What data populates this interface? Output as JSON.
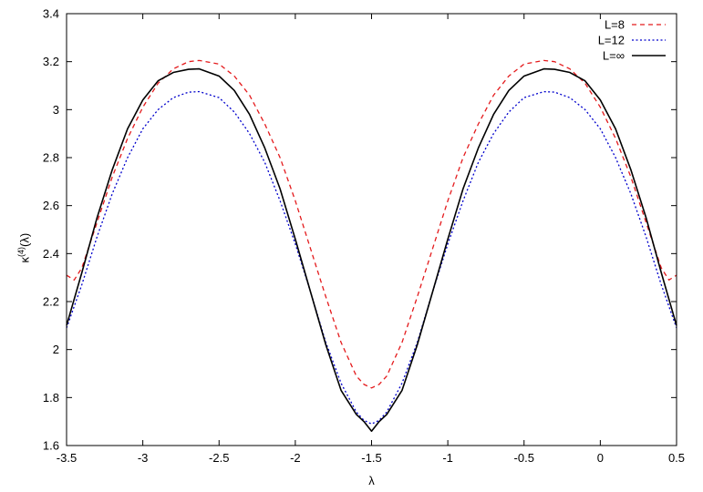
{
  "chart_data": {
    "type": "line",
    "title": "",
    "xlabel": "λ",
    "ylabel": {
      "base": "κ",
      "sup": "(4)",
      "arg": "(λ)"
    },
    "xlim": [
      -3.5,
      0.5
    ],
    "ylim": [
      1.6,
      3.4
    ],
    "xticks": [
      -3.5,
      -3,
      -2.5,
      -2,
      -1.5,
      -1,
      -0.5,
      0,
      0.5
    ],
    "xtick_labels": [
      "-3.5",
      "-3",
      "-2.5",
      "-2",
      "-1.5",
      "-1",
      "-0.5",
      "0",
      "0.5"
    ],
    "yticks": [
      1.6,
      1.8,
      2.0,
      2.2,
      2.4,
      2.6,
      2.8,
      3.0,
      3.2,
      3.4
    ],
    "ytick_labels": [
      "1.6",
      "1.8",
      "2",
      "2.2",
      "2.4",
      "2.6",
      "2.8",
      "3",
      "3.2",
      "3.4"
    ],
    "grid": false,
    "legend_position": "top-right",
    "series": [
      {
        "name": "L=8",
        "color": "#e41a1c",
        "dash": "dashed",
        "x": [
          -3.5,
          -3.45,
          -3.4,
          -3.3,
          -3.2,
          -3.1,
          -3.0,
          -2.9,
          -2.8,
          -2.7,
          -2.63,
          -2.5,
          -2.4,
          -2.3,
          -2.2,
          -2.1,
          -2.0,
          -1.9,
          -1.8,
          -1.7,
          -1.6,
          -1.55,
          -1.5,
          -1.45,
          -1.4,
          -1.3,
          -1.2,
          -1.1,
          -1.0,
          -0.9,
          -0.8,
          -0.7,
          -0.6,
          -0.5,
          -0.37,
          -0.3,
          -0.2,
          -0.1,
          0.0,
          0.1,
          0.2,
          0.3,
          0.4,
          0.45,
          0.5
        ],
        "y": [
          2.31,
          2.29,
          2.34,
          2.53,
          2.72,
          2.88,
          3.01,
          3.11,
          3.17,
          3.2,
          3.205,
          3.19,
          3.14,
          3.06,
          2.94,
          2.8,
          2.62,
          2.42,
          2.22,
          2.03,
          1.89,
          1.855,
          1.84,
          1.855,
          1.89,
          2.03,
          2.22,
          2.42,
          2.62,
          2.8,
          2.94,
          3.06,
          3.14,
          3.19,
          3.205,
          3.2,
          3.17,
          3.11,
          3.01,
          2.88,
          2.72,
          2.53,
          2.34,
          2.29,
          2.31
        ]
      },
      {
        "name": "L=12",
        "color": "#0000cc",
        "dash": "dotted",
        "x": [
          -3.5,
          -3.4,
          -3.3,
          -3.2,
          -3.1,
          -3.0,
          -2.9,
          -2.8,
          -2.7,
          -2.63,
          -2.5,
          -2.4,
          -2.3,
          -2.2,
          -2.1,
          -2.0,
          -1.9,
          -1.8,
          -1.7,
          -1.6,
          -1.55,
          -1.5,
          -1.45,
          -1.4,
          -1.3,
          -1.2,
          -1.1,
          -1.0,
          -0.9,
          -0.8,
          -0.7,
          -0.6,
          -0.5,
          -0.37,
          -0.3,
          -0.2,
          -0.1,
          0.0,
          0.1,
          0.2,
          0.3,
          0.4,
          0.5
        ],
        "y": [
          2.09,
          2.27,
          2.47,
          2.65,
          2.8,
          2.92,
          3.0,
          3.05,
          3.073,
          3.075,
          3.05,
          2.99,
          2.9,
          2.78,
          2.62,
          2.44,
          2.24,
          2.03,
          1.86,
          1.74,
          1.705,
          1.69,
          1.705,
          1.74,
          1.86,
          2.03,
          2.24,
          2.44,
          2.62,
          2.78,
          2.9,
          2.99,
          3.05,
          3.075,
          3.073,
          3.05,
          3.0,
          2.92,
          2.8,
          2.65,
          2.47,
          2.27,
          2.09
        ]
      },
      {
        "name": "L=∞",
        "color": "#000000",
        "dash": "solid",
        "x": [
          -3.5,
          -3.4,
          -3.3,
          -3.2,
          -3.1,
          -3.0,
          -2.9,
          -2.8,
          -2.7,
          -2.63,
          -2.5,
          -2.4,
          -2.3,
          -2.2,
          -2.1,
          -2.0,
          -1.9,
          -1.8,
          -1.7,
          -1.6,
          -1.55,
          -1.5,
          -1.45,
          -1.4,
          -1.3,
          -1.2,
          -1.1,
          -1.0,
          -0.9,
          -0.8,
          -0.7,
          -0.6,
          -0.5,
          -0.37,
          -0.3,
          -0.2,
          -0.1,
          0.0,
          0.1,
          0.2,
          0.3,
          0.4,
          0.5
        ],
        "y": [
          2.1,
          2.32,
          2.55,
          2.75,
          2.92,
          3.04,
          3.12,
          3.155,
          3.168,
          3.17,
          3.14,
          3.08,
          2.98,
          2.84,
          2.67,
          2.46,
          2.24,
          2.02,
          1.83,
          1.73,
          1.7,
          1.66,
          1.7,
          1.73,
          1.83,
          2.02,
          2.24,
          2.46,
          2.67,
          2.84,
          2.98,
          3.08,
          3.14,
          3.17,
          3.168,
          3.155,
          3.12,
          3.04,
          2.92,
          2.75,
          2.55,
          2.32,
          2.1
        ]
      }
    ]
  }
}
